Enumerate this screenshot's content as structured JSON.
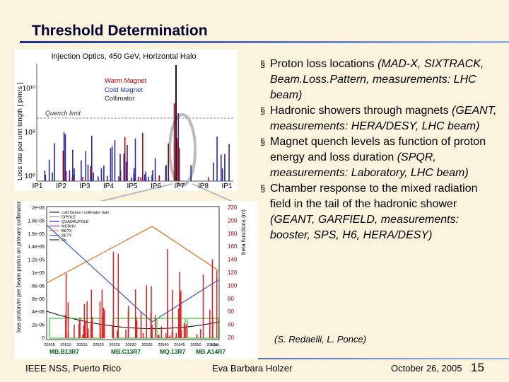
{
  "header": {
    "title": "Threshold Determination"
  },
  "top_plot": {
    "title": "Injection Optics, 450 GeV, Horizontal Halo",
    "y_label": "Loss rate per unit length [ p/m/s ]",
    "legend": [
      "Warm Magnet",
      "Cold Magnet",
      "Collimator"
    ],
    "quench_label": "Quench limit",
    "y_ticks": [
      "10¹⁰",
      "10⁸",
      "10⁶"
    ],
    "x_ticks": [
      "IP1",
      "IP2",
      "IP3",
      "IP4",
      "IP5",
      "IP6",
      "IP7",
      "IP8",
      "IP1"
    ]
  },
  "bottom_plot": {
    "y_label": "loss proton/m per beam proton on primary collimator",
    "y2_label": "beta functions (m)",
    "y_ticks": [
      "2e-05",
      "1.8e-05",
      "1.6e-05",
      "1.4e-05",
      "1.2e-05",
      "1e-05",
      "8e-06",
      "6e-06",
      "4e-06",
      "2e-06",
      "0"
    ],
    "y2_ticks": [
      "220",
      "200",
      "180",
      "160",
      "140",
      "120",
      "100",
      "80",
      "60",
      "40",
      "20"
    ],
    "x_ticks": [
      "20505",
      "20510",
      "20515",
      "20520",
      "20525",
      "20530",
      "20535",
      "20540",
      "20545",
      "20550",
      "20555"
    ],
    "x_unit": "z (m)",
    "legend": [
      "cold losses / collimator halo",
      "DIPOLE",
      "QUADRUPOLE",
      "MCBHV",
      "BETX",
      "BETY",
      "Dx"
    ],
    "magnets": [
      "MB.B13R7",
      "MB.C13R7",
      "MQ.13R7",
      "MB.A14R7"
    ]
  },
  "bullets": [
    {
      "text": "Proton loss locations",
      "detail": "(MAD-X, SIXTRACK, Beam.Loss.Pattern, measurements: LHC beam)"
    },
    {
      "text": "Hadronic showers through magnets",
      "detail": "(GEANT, measurements: HERA/DESY, LHC beam)"
    },
    {
      "text": "Magnet quench levels as function of proton energy and loss duration",
      "detail": "(SPQR, measurements: Laboratory, LHC beam)"
    },
    {
      "text": "Chamber response to the mixed radiation field in the tail of the hadronic shower",
      "detail": "(GEANT, GARFIELD, measurements: booster, SPS, H6, HERA/DESY)"
    }
  ],
  "citation": "(S. Redaelli, L. Ponce)",
  "footer": {
    "venue": "IEEE NSS, Puerto Rico",
    "author": "Eva Barbara Holzer",
    "date": "October 26, 2005",
    "page": "15"
  }
}
